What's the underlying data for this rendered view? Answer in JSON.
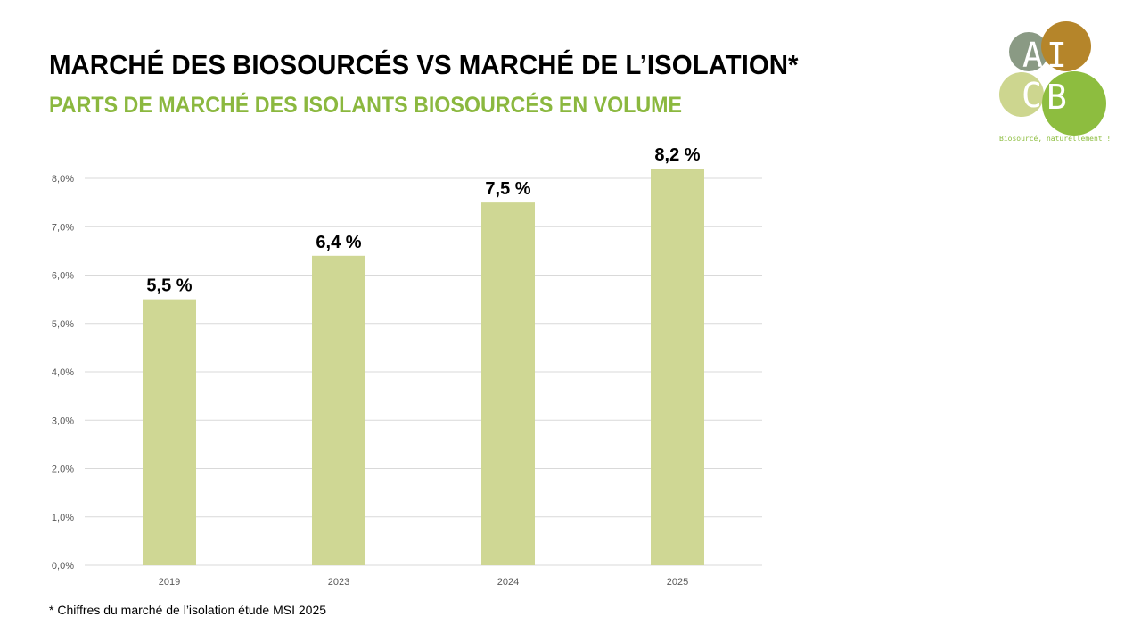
{
  "header": {
    "title": "MARCHÉ DES BIOSOURCÉS VS MARCHÉ DE L’ISOLATION*",
    "subtitle": "PARTS DE MARCHÉ DES ISOLANTS BIOSOURCÉS EN VOLUME"
  },
  "logo": {
    "letters": [
      "A",
      "I",
      "C",
      "B"
    ],
    "tagline": "Biosourcé, naturellement !"
  },
  "colors": {
    "bar": "#cfd794",
    "subtitle": "#8bb83f",
    "grid": "#d9d9d9",
    "axis_text": "#595959",
    "logo_grey": "#8a9a84",
    "logo_brown": "#b5852a",
    "logo_light": "#cdd68f",
    "logo_green": "#8dbd3f"
  },
  "chart_data": {
    "type": "bar",
    "categories": [
      "2019",
      "2023",
      "2024",
      "2025"
    ],
    "values": [
      5.5,
      6.4,
      7.5,
      8.2
    ],
    "data_labels": [
      "5,5 %",
      "6,4 %",
      "7,5 %",
      "8,2 %"
    ],
    "yticks": [
      "0,0%",
      "1,0%",
      "2,0%",
      "3,0%",
      "4,0%",
      "5,0%",
      "6,0%",
      "7,0%",
      "8,0%"
    ],
    "ylim": [
      0,
      8.0
    ],
    "grid": true,
    "legend": false
  },
  "footnote": "* Chiffres du marché de l’isolation étude MSI 2025"
}
